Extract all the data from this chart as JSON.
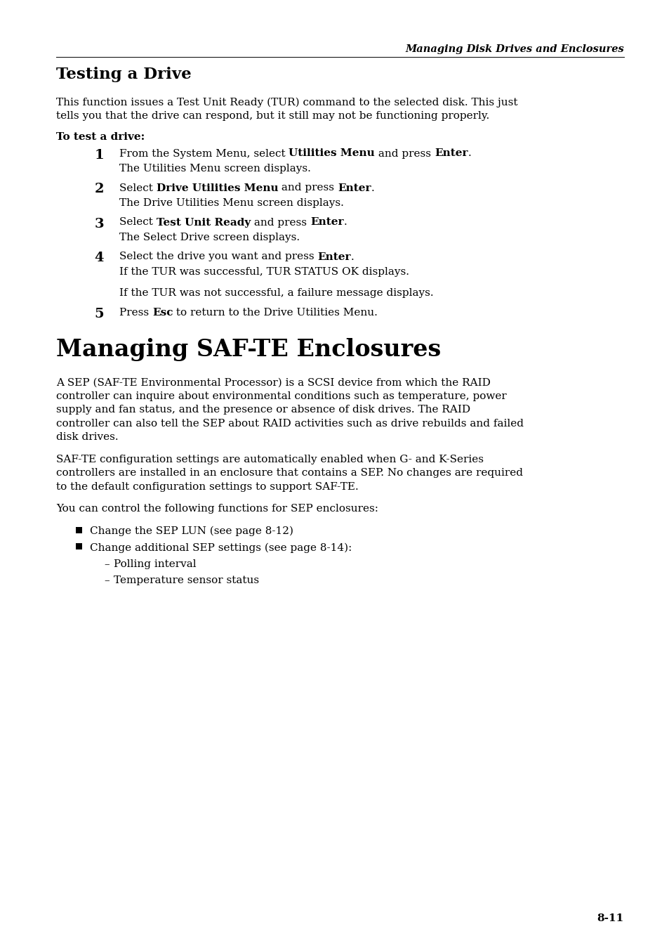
{
  "header_text": "Managing Disk Drives and Enclosures",
  "section1_title": "Testing a Drive",
  "section1_intro_lines": [
    "This function issues a Test Unit Ready (TUR) command to the selected disk. This just",
    "tells you that the drive can respond, but it still may not be functioning properly."
  ],
  "section1_label": "To test a drive:",
  "steps": [
    {
      "num": "1",
      "main": [
        "From the System Menu, select ",
        "Utilities Menu",
        " and press ",
        "Enter",
        "."
      ],
      "main_bold": [
        false,
        true,
        false,
        true,
        false
      ],
      "sub_lines": [
        "The Utilities Menu screen displays."
      ]
    },
    {
      "num": "2",
      "main": [
        "Select ",
        "Drive Utilities Menu",
        " and press ",
        "Enter",
        "."
      ],
      "main_bold": [
        false,
        true,
        false,
        true,
        false
      ],
      "sub_lines": [
        "The Drive Utilities Menu screen displays."
      ]
    },
    {
      "num": "3",
      "main": [
        "Select ",
        "Test Unit Ready",
        " and press ",
        "Enter",
        "."
      ],
      "main_bold": [
        false,
        true,
        false,
        true,
        false
      ],
      "sub_lines": [
        "The Select Drive screen displays."
      ]
    },
    {
      "num": "4",
      "main": [
        "Select the drive you want and press ",
        "Enter",
        "."
      ],
      "main_bold": [
        false,
        true,
        false
      ],
      "sub_lines": [
        "If the TUR was successful, TUR STATUS OK displays.",
        "",
        "If the TUR was not successful, a failure message displays."
      ]
    },
    {
      "num": "5",
      "main": [
        "Press ",
        "Esc",
        " to return to the Drive Utilities Menu."
      ],
      "main_bold": [
        false,
        true,
        false
      ],
      "sub_lines": []
    }
  ],
  "section2_title": "Managing SAF-TE Enclosures",
  "section2_para1_lines": [
    "A SEP (SAF-TE Environmental Processor) is a SCSI device from which the RAID",
    "controller can inquire about environmental conditions such as temperature, power",
    "supply and fan status, and the presence or absence of disk drives. The RAID",
    "controller can also tell the SEP about RAID activities such as drive rebuilds and failed",
    "disk drives."
  ],
  "section2_para2_lines": [
    "SAF-TE configuration settings are automatically enabled when G- and K-Series",
    "controllers are installed in an enclosure that contains a SEP. No changes are required",
    "to the default configuration settings to support SAF-TE."
  ],
  "section2_para3_lines": [
    "You can control the following functions for SEP enclosures:"
  ],
  "bullets": [
    {
      "text": "Change the SEP LUN (see page 8-12)",
      "sub_bullets": []
    },
    {
      "text": "Change additional SEP settings (see page 8-14):",
      "sub_bullets": [
        "Polling interval",
        "Temperature sensor status"
      ]
    }
  ],
  "page_num": "8-11",
  "bg_color": "#ffffff",
  "text_color": "#000000"
}
